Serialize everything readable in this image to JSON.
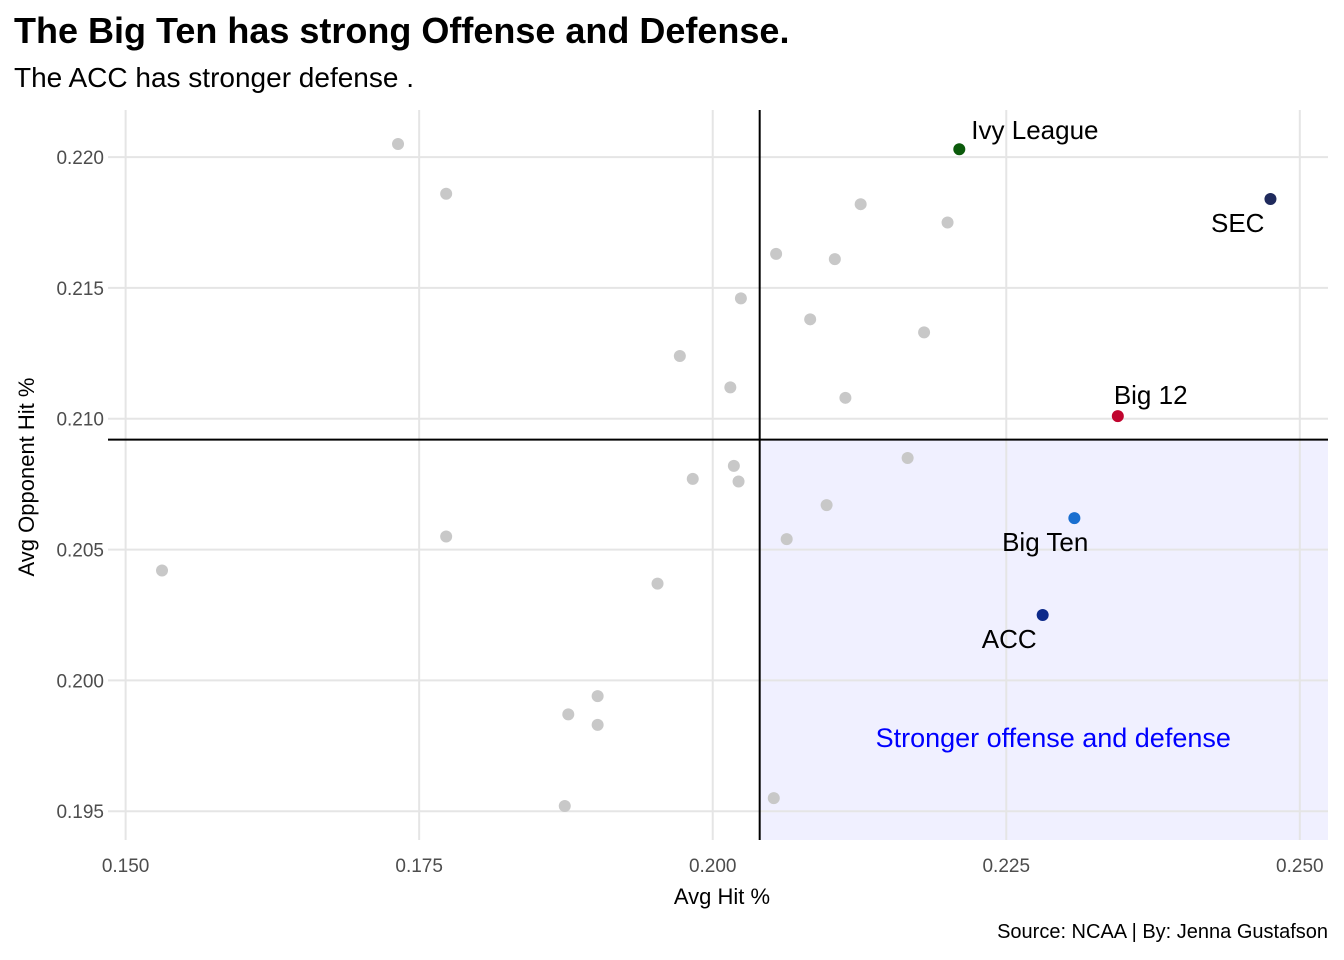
{
  "chart_data": {
    "type": "scatter",
    "title": "The Big Ten has strong Offense and Defense.",
    "subtitle": "The ACC has stronger defense .",
    "caption": "Source: NCAA | By: Jenna Gustafson",
    "xlabel": "Avg Hit %",
    "ylabel": "Avg Opponent Hit %",
    "xlim": [
      0.1485,
      0.2524
    ],
    "ylim": [
      0.1939,
      0.2218
    ],
    "x_ticks": [
      0.15,
      0.175,
      0.2,
      0.225,
      0.25
    ],
    "x_tick_labels": [
      "0.150",
      "0.175",
      "0.200",
      "0.225",
      "0.250"
    ],
    "y_ticks": [
      0.195,
      0.2,
      0.205,
      0.21,
      0.215,
      0.22
    ],
    "y_tick_labels": [
      "0.195",
      "0.200",
      "0.205",
      "0.210",
      "0.215",
      "0.220"
    ],
    "grid": true,
    "reference_lines": {
      "vline_x": 0.204,
      "hline_y": 0.2092
    },
    "region": {
      "label": "Stronger offense and defense",
      "fill": "#f0f0ff",
      "label_color": "#0000ff",
      "label_x": 0.229,
      "label_y": 0.1978
    },
    "background_points": {
      "color": "#c8c8c8",
      "points": [
        {
          "x": 0.1732,
          "y": 0.2205
        },
        {
          "x": 0.1773,
          "y": 0.2186
        },
        {
          "x": 0.2126,
          "y": 0.2182
        },
        {
          "x": 0.22,
          "y": 0.2175
        },
        {
          "x": 0.2054,
          "y": 0.2163
        },
        {
          "x": 0.2104,
          "y": 0.2161
        },
        {
          "x": 0.2024,
          "y": 0.2146
        },
        {
          "x": 0.2083,
          "y": 0.2138
        },
        {
          "x": 0.218,
          "y": 0.2133
        },
        {
          "x": 0.1972,
          "y": 0.2124
        },
        {
          "x": 0.2015,
          "y": 0.2112
        },
        {
          "x": 0.2113,
          "y": 0.2108
        },
        {
          "x": 0.2166,
          "y": 0.2085
        },
        {
          "x": 0.2018,
          "y": 0.2082
        },
        {
          "x": 0.1983,
          "y": 0.2077
        },
        {
          "x": 0.2022,
          "y": 0.2076
        },
        {
          "x": 0.2097,
          "y": 0.2067
        },
        {
          "x": 0.1773,
          "y": 0.2055
        },
        {
          "x": 0.2063,
          "y": 0.2054
        },
        {
          "x": 0.1531,
          "y": 0.2042
        },
        {
          "x": 0.1953,
          "y": 0.2037
        },
        {
          "x": 0.1902,
          "y": 0.1994
        },
        {
          "x": 0.1877,
          "y": 0.1987
        },
        {
          "x": 0.1902,
          "y": 0.1983
        },
        {
          "x": 0.2052,
          "y": 0.1955
        },
        {
          "x": 0.1874,
          "y": 0.1952
        }
      ]
    },
    "highlighted": [
      {
        "name": "Ivy League",
        "x": 0.221,
        "y": 0.2203,
        "color": "#0b5a0b",
        "label_dx": 12,
        "label_dy": -10,
        "anchor": "start"
      },
      {
        "name": "SEC",
        "x": 0.2475,
        "y": 0.2184,
        "color": "#1f2a5c",
        "label_dx": -6,
        "label_dy": 33,
        "anchor": "end"
      },
      {
        "name": "Big 12",
        "x": 0.2345,
        "y": 0.2101,
        "color": "#c0042e",
        "label_dx": -4,
        "label_dy": -12,
        "anchor": "start"
      },
      {
        "name": "Big Ten",
        "x": 0.2308,
        "y": 0.2062,
        "color": "#1a6fd0",
        "label_dx": 14,
        "label_dy": 33,
        "anchor": "end"
      },
      {
        "name": "ACC",
        "x": 0.2281,
        "y": 0.2025,
        "color": "#0d2a8a",
        "label_dx": -6,
        "label_dy": 33,
        "anchor": "end"
      }
    ]
  }
}
